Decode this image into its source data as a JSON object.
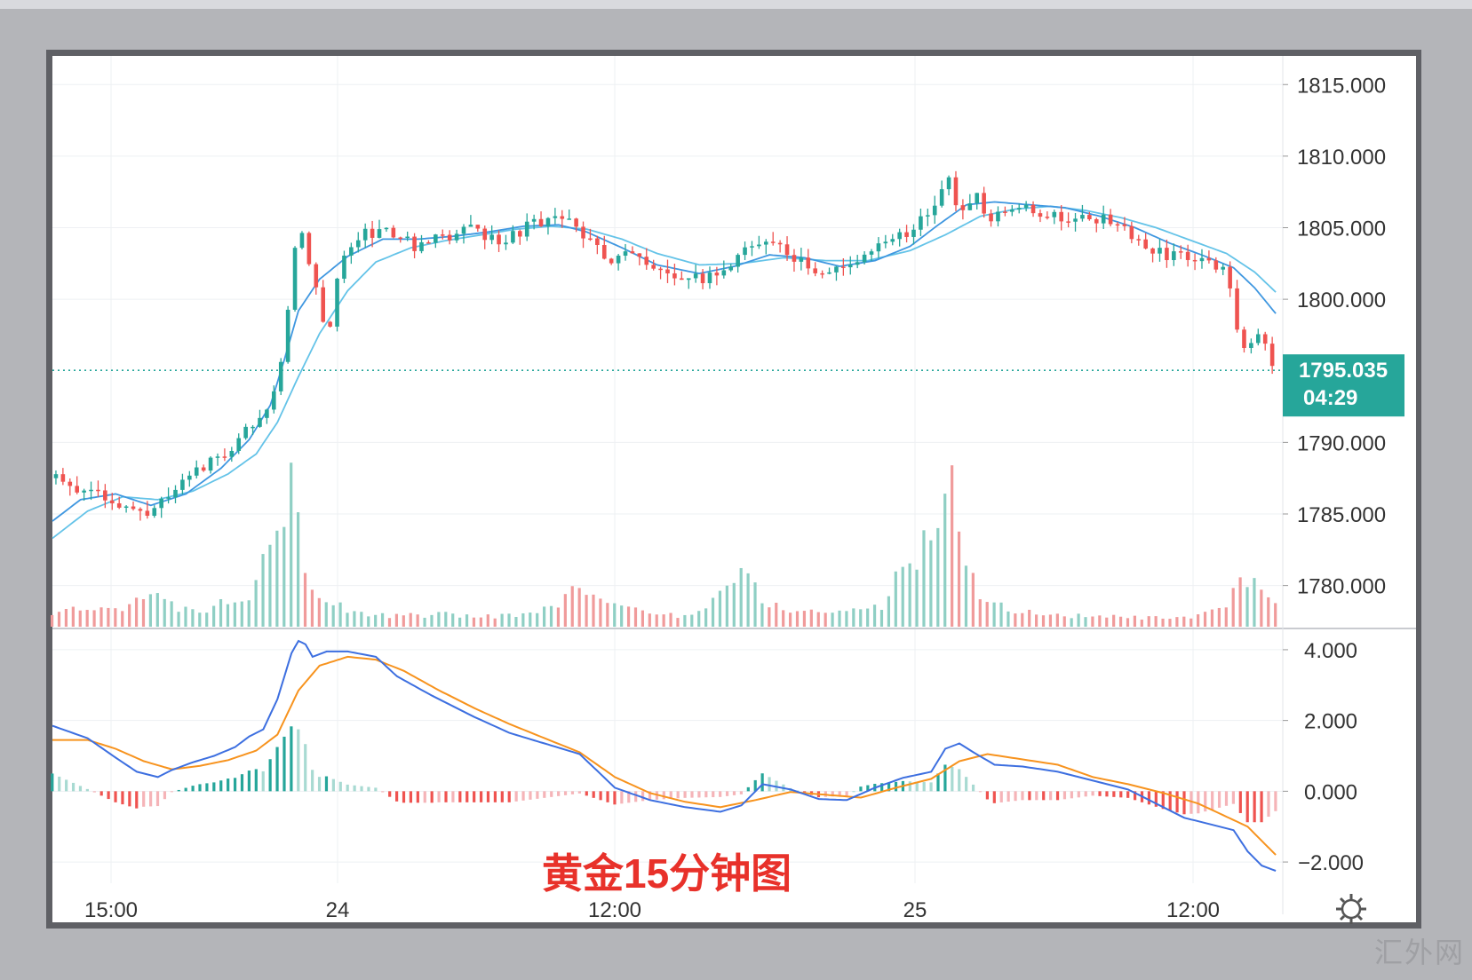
{
  "caption": "黄金15分钟图",
  "watermark": "汇外网",
  "last_price": "1795.035",
  "countdown": "04:29",
  "colors": {
    "up": "#26a69a",
    "down": "#ef5350",
    "ma_fast": "#3f97e0",
    "ma_slow": "#64c3e8",
    "macd": "#3d6fe0",
    "signal": "#f7931e",
    "caption": "#e8312a",
    "price_tag": "#26a69a"
  },
  "time_axis": [
    "15:00",
    "24",
    "12:00",
    "25",
    "12:00"
  ],
  "chart_data": {
    "type": "candlestick",
    "price_axis": {
      "ticks": [
        "1815.000",
        "1810.000",
        "1805.000",
        "1800.000",
        "1790.000",
        "1785.000",
        "1780.000"
      ],
      "ylim": [
        1777,
        1817
      ]
    },
    "macd_axis": {
      "ticks": [
        "4.000",
        "2.000",
        "0.000",
        "−2.000"
      ],
      "ylim": [
        -2.6,
        4.6
      ]
    },
    "close_path": [
      [
        0,
        1787.5
      ],
      [
        10,
        1786.5
      ],
      [
        20,
        1785.5
      ],
      [
        28,
        1785.3
      ],
      [
        36,
        1786.8
      ],
      [
        44,
        1788.5
      ],
      [
        50,
        1789.5
      ],
      [
        56,
        1791
      ],
      [
        62,
        1793
      ],
      [
        66,
        1797
      ],
      [
        68,
        1802
      ],
      [
        70,
        1805.5
      ],
      [
        74,
        1802
      ],
      [
        78,
        1797
      ],
      [
        82,
        1803
      ],
      [
        88,
        1804.5
      ],
      [
        96,
        1804.8
      ],
      [
        104,
        1803.5
      ],
      [
        112,
        1804.5
      ],
      [
        120,
        1804.8
      ],
      [
        128,
        1804
      ],
      [
        136,
        1805.3
      ],
      [
        144,
        1805.5
      ],
      [
        150,
        1805
      ],
      [
        158,
        1802.5
      ],
      [
        164,
        1803.5
      ],
      [
        170,
        1802
      ],
      [
        178,
        1801.5
      ],
      [
        186,
        1801.5
      ],
      [
        194,
        1802.8
      ],
      [
        202,
        1804.3
      ],
      [
        210,
        1803
      ],
      [
        220,
        1801.8
      ],
      [
        228,
        1802.5
      ],
      [
        236,
        1804
      ],
      [
        244,
        1804.8
      ],
      [
        250,
        1806
      ],
      [
        254,
        1808.8
      ],
      [
        258,
        1806
      ],
      [
        262,
        1807.5
      ],
      [
        266,
        1805.5
      ],
      [
        272,
        1806.5
      ],
      [
        280,
        1806.2
      ],
      [
        288,
        1805.5
      ],
      [
        296,
        1805.8
      ],
      [
        304,
        1805.2
      ],
      [
        310,
        1803.5
      ],
      [
        318,
        1803
      ],
      [
        326,
        1802.8
      ],
      [
        334,
        1801.8
      ],
      [
        338,
        1796
      ],
      [
        344,
        1797.5
      ],
      [
        348,
        1795
      ]
    ],
    "volume": {
      "max": 100,
      "series": [
        [
          0,
          8
        ],
        [
          10,
          10
        ],
        [
          20,
          12
        ],
        [
          28,
          18
        ],
        [
          36,
          10
        ],
        [
          44,
          10
        ],
        [
          50,
          15
        ],
        [
          56,
          20
        ],
        [
          60,
          48
        ],
        [
          64,
          55
        ],
        [
          66,
          75
        ],
        [
          68,
          90
        ],
        [
          70,
          60
        ],
        [
          72,
          40
        ],
        [
          74,
          22
        ],
        [
          78,
          15
        ],
        [
          86,
          8
        ],
        [
          96,
          6
        ],
        [
          110,
          7
        ],
        [
          122,
          6
        ],
        [
          138,
          7
        ],
        [
          150,
          22
        ],
        [
          160,
          12
        ],
        [
          170,
          8
        ],
        [
          180,
          6
        ],
        [
          190,
          18
        ],
        [
          196,
          36
        ],
        [
          202,
          14
        ],
        [
          210,
          10
        ],
        [
          220,
          8
        ],
        [
          236,
          12
        ],
        [
          244,
          40
        ],
        [
          248,
          45
        ],
        [
          252,
          62
        ],
        [
          254,
          100
        ],
        [
          256,
          75
        ],
        [
          258,
          55
        ],
        [
          260,
          40
        ],
        [
          264,
          18
        ],
        [
          272,
          10
        ],
        [
          282,
          7
        ],
        [
          296,
          6
        ],
        [
          310,
          5
        ],
        [
          324,
          5
        ],
        [
          334,
          10
        ],
        [
          338,
          28
        ],
        [
          342,
          26
        ],
        [
          348,
          14
        ]
      ]
    },
    "macd": [
      [
        0,
        1.85
      ],
      [
        10,
        1.5
      ],
      [
        18,
        0.95
      ],
      [
        24,
        0.55
      ],
      [
        30,
        0.4
      ],
      [
        34,
        0.6
      ],
      [
        40,
        0.82
      ],
      [
        46,
        1.0
      ],
      [
        52,
        1.25
      ],
      [
        56,
        1.55
      ],
      [
        60,
        1.75
      ],
      [
        64,
        2.6
      ],
      [
        68,
        3.9
      ],
      [
        70,
        4.25
      ],
      [
        72,
        4.15
      ],
      [
        74,
        3.8
      ],
      [
        78,
        3.95
      ],
      [
        84,
        3.95
      ],
      [
        92,
        3.8
      ],
      [
        98,
        3.25
      ],
      [
        108,
        2.7
      ],
      [
        120,
        2.1
      ],
      [
        130,
        1.65
      ],
      [
        140,
        1.35
      ],
      [
        150,
        1.05
      ],
      [
        160,
        0.1
      ],
      [
        170,
        -0.25
      ],
      [
        180,
        -0.45
      ],
      [
        190,
        -0.58
      ],
      [
        196,
        -0.4
      ],
      [
        202,
        0.2
      ],
      [
        210,
        0.05
      ],
      [
        218,
        -0.22
      ],
      [
        226,
        -0.25
      ],
      [
        234,
        0.1
      ],
      [
        242,
        0.38
      ],
      [
        250,
        0.55
      ],
      [
        254,
        1.2
      ],
      [
        258,
        1.35
      ],
      [
        262,
        1.1
      ],
      [
        268,
        0.75
      ],
      [
        276,
        0.7
      ],
      [
        286,
        0.55
      ],
      [
        296,
        0.3
      ],
      [
        306,
        0.05
      ],
      [
        314,
        -0.35
      ],
      [
        322,
        -0.75
      ],
      [
        330,
        -0.95
      ],
      [
        336,
        -1.1
      ],
      [
        340,
        -1.7
      ],
      [
        344,
        -2.1
      ],
      [
        348,
        -2.25
      ]
    ],
    "signal": [
      [
        0,
        1.45
      ],
      [
        10,
        1.45
      ],
      [
        18,
        1.2
      ],
      [
        26,
        0.85
      ],
      [
        34,
        0.62
      ],
      [
        42,
        0.72
      ],
      [
        50,
        0.88
      ],
      [
        58,
        1.15
      ],
      [
        64,
        1.6
      ],
      [
        70,
        2.85
      ],
      [
        76,
        3.55
      ],
      [
        84,
        3.8
      ],
      [
        92,
        3.72
      ],
      [
        100,
        3.4
      ],
      [
        110,
        2.85
      ],
      [
        120,
        2.35
      ],
      [
        130,
        1.9
      ],
      [
        140,
        1.5
      ],
      [
        150,
        1.1
      ],
      [
        160,
        0.4
      ],
      [
        170,
        -0.05
      ],
      [
        180,
        -0.3
      ],
      [
        190,
        -0.45
      ],
      [
        200,
        -0.25
      ],
      [
        210,
        -0.02
      ],
      [
        220,
        -0.1
      ],
      [
        230,
        -0.18
      ],
      [
        240,
        0.1
      ],
      [
        250,
        0.35
      ],
      [
        258,
        0.85
      ],
      [
        266,
        1.05
      ],
      [
        276,
        0.9
      ],
      [
        286,
        0.75
      ],
      [
        296,
        0.4
      ],
      [
        306,
        0.2
      ],
      [
        316,
        -0.05
      ],
      [
        326,
        -0.35
      ],
      [
        334,
        -0.72
      ],
      [
        340,
        -1.0
      ],
      [
        344,
        -1.4
      ],
      [
        348,
        -1.8
      ]
    ],
    "ma_fast": [
      [
        0,
        1784.5
      ],
      [
        8,
        1786
      ],
      [
        18,
        1786.4
      ],
      [
        28,
        1785.6
      ],
      [
        38,
        1786.4
      ],
      [
        48,
        1788.2
      ],
      [
        56,
        1790.2
      ],
      [
        62,
        1792.6
      ],
      [
        66,
        1795.8
      ],
      [
        70,
        1799.2
      ],
      [
        76,
        1801.4
      ],
      [
        84,
        1803
      ],
      [
        94,
        1804.2
      ],
      [
        104,
        1804.2
      ],
      [
        114,
        1804.4
      ],
      [
        124,
        1804.7
      ],
      [
        134,
        1805.1
      ],
      [
        144,
        1805.2
      ],
      [
        152,
        1804.7
      ],
      [
        162,
        1803.6
      ],
      [
        172,
        1802.4
      ],
      [
        184,
        1801.8
      ],
      [
        194,
        1802.3
      ],
      [
        204,
        1803.1
      ],
      [
        214,
        1802.9
      ],
      [
        224,
        1802.3
      ],
      [
        234,
        1802.7
      ],
      [
        244,
        1803.7
      ],
      [
        252,
        1805.2
      ],
      [
        260,
        1806.6
      ],
      [
        268,
        1806.8
      ],
      [
        278,
        1806.6
      ],
      [
        288,
        1806.4
      ],
      [
        298,
        1805.8
      ],
      [
        308,
        1805
      ],
      [
        318,
        1803.9
      ],
      [
        328,
        1803
      ],
      [
        336,
        1802.2
      ],
      [
        342,
        1800.8
      ],
      [
        348,
        1799
      ]
    ],
    "ma_slow": [
      [
        0,
        1783.3
      ],
      [
        10,
        1785.2
      ],
      [
        20,
        1786.2
      ],
      [
        30,
        1786
      ],
      [
        40,
        1786.6
      ],
      [
        50,
        1787.8
      ],
      [
        58,
        1789.2
      ],
      [
        64,
        1791.4
      ],
      [
        70,
        1794.6
      ],
      [
        76,
        1797.6
      ],
      [
        84,
        1800.6
      ],
      [
        92,
        1802.6
      ],
      [
        102,
        1803.6
      ],
      [
        112,
        1804.1
      ],
      [
        122,
        1804.5
      ],
      [
        132,
        1804.9
      ],
      [
        142,
        1805.1
      ],
      [
        152,
        1804.9
      ],
      [
        162,
        1804.2
      ],
      [
        172,
        1803.2
      ],
      [
        184,
        1802.4
      ],
      [
        196,
        1802.5
      ],
      [
        208,
        1802.9
      ],
      [
        220,
        1802.7
      ],
      [
        232,
        1802.7
      ],
      [
        244,
        1803.4
      ],
      [
        254,
        1804.5
      ],
      [
        264,
        1805.8
      ],
      [
        274,
        1806.3
      ],
      [
        284,
        1806.5
      ],
      [
        294,
        1806.2
      ],
      [
        304,
        1805.7
      ],
      [
        314,
        1805
      ],
      [
        324,
        1804.1
      ],
      [
        334,
        1803.2
      ],
      [
        342,
        1801.9
      ],
      [
        348,
        1800.5
      ]
    ]
  }
}
